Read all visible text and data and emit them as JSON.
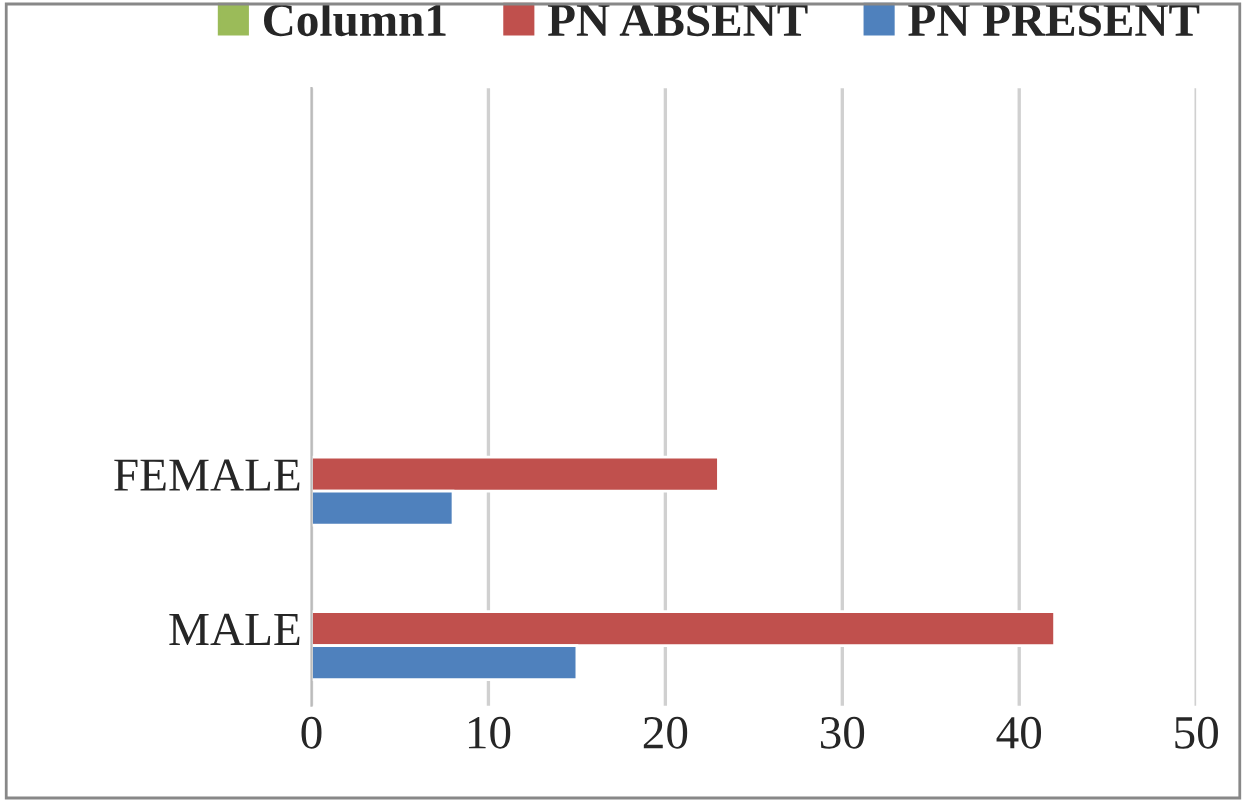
{
  "chart_data": {
    "type": "bar",
    "orientation": "horizontal",
    "categories": [
      null,
      null,
      "FEMALE",
      "MALE"
    ],
    "series": [
      {
        "name": "Column1",
        "color": "#9bbb59",
        "values": [
          null,
          null,
          null,
          null
        ]
      },
      {
        "name": "PN ABSENT",
        "color": "#c0504d",
        "values": [
          null,
          null,
          23,
          42
        ]
      },
      {
        "name": "PN PRESENT",
        "color": "#4f81bd",
        "values": [
          null,
          null,
          8,
          15
        ]
      }
    ],
    "xlim": [
      0,
      50
    ],
    "xticks": [
      0,
      10,
      20,
      30,
      40,
      50
    ],
    "grid": "x",
    "legend": "top"
  }
}
